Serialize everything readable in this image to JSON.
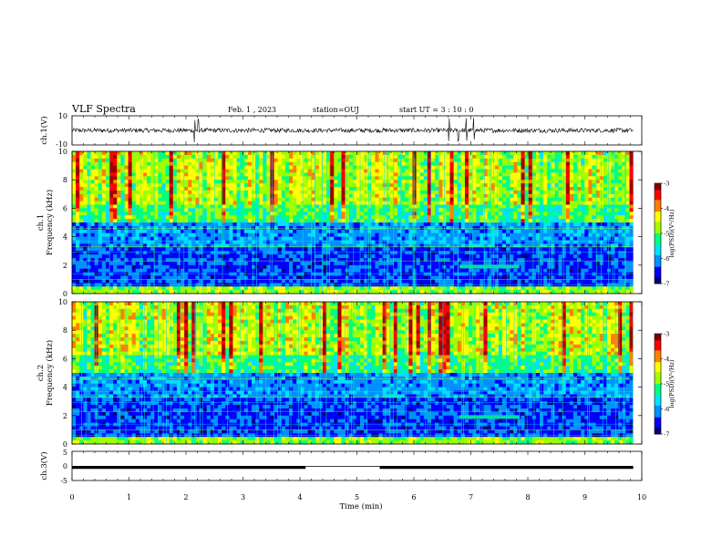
{
  "header": {
    "title": "VLF Spectra",
    "date": "Feb. 1 , 2023",
    "station": "station=OUJ",
    "start": "start UT = 3 : 10 : 0"
  },
  "chart_data": [
    {
      "type": "line",
      "name": "ch1-waveform",
      "ylabel": "ch.1(V)",
      "ylim": [
        -10,
        10
      ],
      "yticks": [
        "10",
        "-10"
      ],
      "xlim": [
        0,
        10
      ],
      "description_values": {
        "baseline": 0,
        "typical_amplitude": 1.5,
        "spikes_at_min": [
          2.15,
          2.22,
          6.62,
          6.78,
          6.92,
          7.05
        ]
      }
    },
    {
      "type": "heatmap",
      "name": "ch1-spectrogram",
      "ylabel": "ch.1\nFrequency (kHz)",
      "ylabel_lines": [
        "ch.1",
        "Frequency (kHz)"
      ],
      "ylim": [
        0,
        10
      ],
      "yticks": [
        "0",
        "2",
        "4",
        "6",
        "8",
        "10"
      ],
      "xlim": [
        0,
        10
      ],
      "colorbar": {
        "label": "log(PSD)(V²/Hz)",
        "range": [
          -7,
          -3
        ],
        "ticks": [
          "-3",
          "-4",
          "-5",
          "-6",
          "-7"
        ]
      },
      "features": {
        "narrowband_line_khz": 1.9,
        "narrowband_span_min": [
          6.8,
          7.85
        ]
      }
    },
    {
      "type": "heatmap",
      "name": "ch2-spectrogram",
      "ylabel": "ch.2\nFrequency (kHz)",
      "ylabel_lines": [
        "ch.2",
        "Frequency (kHz)"
      ],
      "ylim": [
        0,
        10
      ],
      "yticks": [
        "0",
        "2",
        "4",
        "6",
        "8",
        "10"
      ],
      "xlim": [
        0,
        10
      ],
      "colorbar": {
        "label": "log(PSD)(V²/Hz)",
        "range": [
          -7,
          -3
        ],
        "ticks": [
          "-3",
          "-4",
          "-5",
          "-6",
          "-7"
        ]
      },
      "features": {
        "narrowband_line_khz": 1.9,
        "narrowband_span_min": [
          6.8,
          7.85
        ]
      }
    },
    {
      "type": "line",
      "name": "ch3-waveform",
      "ylabel": "ch.3(V)",
      "ylim": [
        -5,
        5
      ],
      "yticks": [
        "5",
        "0",
        "-5"
      ],
      "xlim": [
        0,
        10
      ],
      "segments": [
        {
          "x": [
            0,
            4.1
          ],
          "y": -0.5
        },
        {
          "x": [
            4.1,
            5.4
          ],
          "y": -0.2
        },
        {
          "x": [
            5.4,
            9.85
          ],
          "y": -0.5
        }
      ]
    }
  ],
  "x_axis": {
    "label": "Time (min)",
    "ticks": [
      "0",
      "1",
      "2",
      "3",
      "4",
      "5",
      "6",
      "7",
      "8",
      "9",
      "10"
    ]
  },
  "colors": {
    "background": "#ffffff",
    "axes": "#000000",
    "colormap": [
      "#000078",
      "#0000ff",
      "#0090ff",
      "#00e0ff",
      "#00ff80",
      "#a0ff00",
      "#ffff00",
      "#ff8000",
      "#ff0000",
      "#a00000"
    ]
  }
}
